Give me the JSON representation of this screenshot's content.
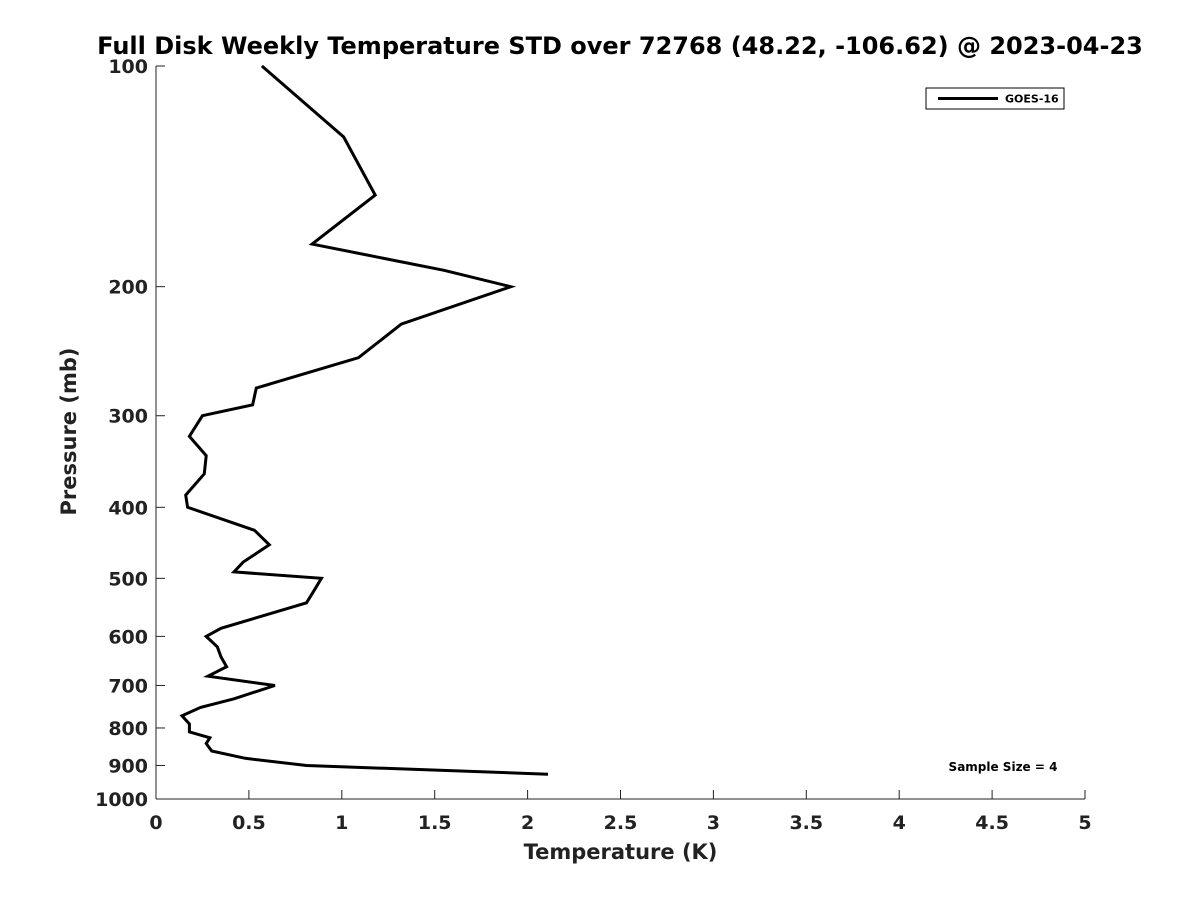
{
  "chart_data": {
    "type": "line",
    "title": "Full Disk Weekly Temperature STD over 72768 (48.22, -106.62) @ 2023-04-23",
    "xlabel": "Temperature (K)",
    "ylabel": "Pressure (mb)",
    "xlim": [
      0,
      5
    ],
    "ylim": [
      1000,
      100
    ],
    "y_scale": "log",
    "x_ticks": [
      "0",
      "0.5",
      "1",
      "1.5",
      "2",
      "2.5",
      "3",
      "3.5",
      "4",
      "4.5",
      "5"
    ],
    "x_tick_values": [
      0,
      0.5,
      1,
      1.5,
      2,
      2.5,
      3,
      3.5,
      4,
      4.5,
      5
    ],
    "y_ticks": [
      "100",
      "200",
      "300",
      "400",
      "500",
      "600",
      "700",
      "800",
      "900",
      "1000"
    ],
    "y_tick_values": [
      100,
      200,
      300,
      400,
      500,
      600,
      700,
      800,
      900,
      1000
    ],
    "grid": false,
    "legend": {
      "position": "top-right",
      "entries": [
        "GOES-16"
      ]
    },
    "annotation": "Sample Size = 4",
    "series": [
      {
        "name": "GOES-16",
        "color": "#000000",
        "x": [
          0.57,
          1.01,
          1.18,
          0.84,
          1.55,
          1.91,
          1.32,
          1.09,
          0.54,
          0.52,
          0.25,
          0.18,
          0.27,
          0.26,
          0.16,
          0.17,
          0.53,
          0.61,
          0.47,
          0.42,
          0.89,
          0.85,
          0.81,
          0.6,
          0.35,
          0.27,
          0.33,
          0.35,
          0.38,
          0.28,
          0.64,
          0.42,
          0.24,
          0.14,
          0.18,
          0.18,
          0.29,
          0.27,
          0.3,
          0.48,
          0.81,
          2.11
        ],
        "y": [
          100,
          125,
          150,
          175,
          190,
          200,
          225,
          250,
          275,
          290,
          300,
          320,
          340,
          360,
          385,
          400,
          430,
          450,
          475,
          490,
          500,
          520,
          540,
          560,
          585,
          600,
          620,
          640,
          660,
          680,
          700,
          730,
          750,
          770,
          790,
          810,
          825,
          840,
          860,
          880,
          900,
          925
        ]
      }
    ]
  }
}
